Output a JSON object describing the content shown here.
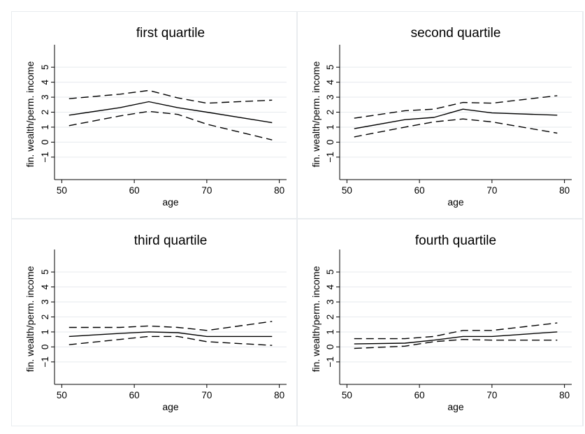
{
  "chart_data": [
    {
      "type": "line",
      "title": "first quartile",
      "xlabel": "age",
      "ylabel": "fin. wealth/perm. income",
      "xlim": [
        49,
        81
      ],
      "ylim": [
        -2.5,
        6.5
      ],
      "xticks": [
        50,
        60,
        70,
        80
      ],
      "yticks": [
        -1,
        0,
        1,
        2,
        3,
        4,
        5
      ],
      "grid": true,
      "x": [
        51,
        58,
        62,
        66,
        70,
        79
      ],
      "series": [
        {
          "style": "solid",
          "values": [
            1.8,
            2.3,
            2.7,
            2.3,
            2.0,
            1.3
          ]
        },
        {
          "style": "dashed",
          "values": [
            2.9,
            3.2,
            3.45,
            2.95,
            2.6,
            2.8
          ]
        },
        {
          "style": "dashed",
          "values": [
            1.1,
            1.75,
            2.05,
            1.85,
            1.2,
            0.15
          ]
        }
      ]
    },
    {
      "type": "line",
      "title": "second quartile",
      "xlabel": "age",
      "ylabel": "fin. wealth/perm. income",
      "xlim": [
        49,
        81
      ],
      "ylim": [
        -2.5,
        6.5
      ],
      "xticks": [
        50,
        60,
        70,
        80
      ],
      "yticks": [
        -1,
        0,
        1,
        2,
        3,
        4,
        5
      ],
      "grid": true,
      "x": [
        51,
        58,
        62,
        66,
        70,
        79
      ],
      "series": [
        {
          "style": "solid",
          "values": [
            0.9,
            1.5,
            1.65,
            2.2,
            1.95,
            1.8
          ]
        },
        {
          "style": "dashed",
          "values": [
            1.6,
            2.1,
            2.2,
            2.65,
            2.6,
            3.1
          ]
        },
        {
          "style": "dashed",
          "values": [
            0.35,
            1.0,
            1.35,
            1.55,
            1.35,
            0.6
          ]
        }
      ]
    },
    {
      "type": "line",
      "title": "third quartile",
      "xlabel": "age",
      "ylabel": "fin. wealth/perm. income",
      "xlim": [
        49,
        81
      ],
      "ylim": [
        -2.5,
        6.5
      ],
      "xticks": [
        50,
        60,
        70,
        80
      ],
      "yticks": [
        -1,
        0,
        1,
        2,
        3,
        4,
        5
      ],
      "grid": true,
      "x": [
        51,
        58,
        62,
        66,
        70,
        79
      ],
      "series": [
        {
          "style": "solid",
          "values": [
            0.7,
            0.9,
            1.0,
            0.95,
            0.7,
            0.7
          ]
        },
        {
          "style": "dashed",
          "values": [
            1.3,
            1.3,
            1.4,
            1.3,
            1.1,
            1.7
          ]
        },
        {
          "style": "dashed",
          "values": [
            0.15,
            0.5,
            0.7,
            0.7,
            0.35,
            0.1
          ]
        }
      ]
    },
    {
      "type": "line",
      "title": "fourth quartile",
      "xlabel": "age",
      "ylabel": "fin. wealth/perm. income",
      "xlim": [
        49,
        81
      ],
      "ylim": [
        -2.5,
        6.5
      ],
      "xticks": [
        50,
        60,
        70,
        80
      ],
      "yticks": [
        -1,
        0,
        1,
        2,
        3,
        4,
        5
      ],
      "grid": true,
      "x": [
        51,
        58,
        62,
        66,
        70,
        79
      ],
      "series": [
        {
          "style": "solid",
          "values": [
            0.2,
            0.25,
            0.45,
            0.7,
            0.7,
            1.0
          ]
        },
        {
          "style": "dashed",
          "values": [
            0.55,
            0.55,
            0.7,
            1.1,
            1.1,
            1.6
          ]
        },
        {
          "style": "dashed",
          "values": [
            -0.1,
            0.05,
            0.35,
            0.5,
            0.45,
            0.45
          ]
        }
      ]
    }
  ],
  "colors": {
    "line": "#000000",
    "grid": "#e6eaee",
    "axis": "#000000",
    "panel_border": "#e9ecef",
    "background": "#ffffff"
  }
}
